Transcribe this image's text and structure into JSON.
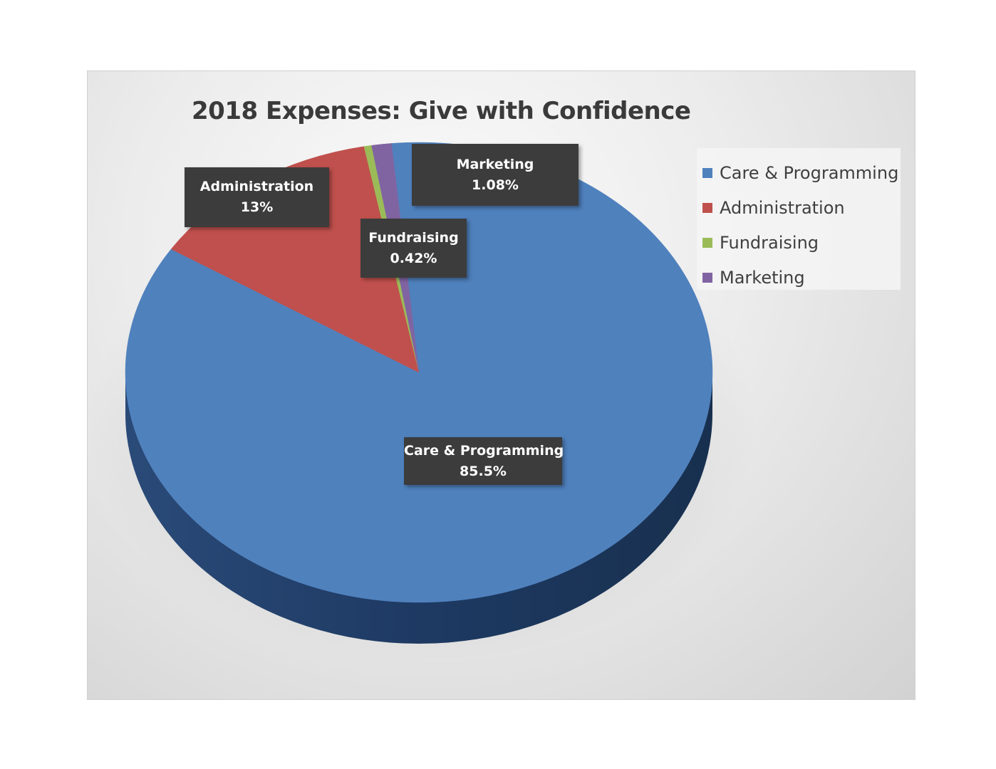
{
  "chart_data": {
    "type": "pie",
    "title": "2018 Expenses: Give with Confidence",
    "slices": [
      {
        "label": "Care & Programming",
        "value": 85.5,
        "value_text": "85.5%",
        "color": "#4f81bd"
      },
      {
        "label": "Administration",
        "value": 13,
        "value_text": "13%",
        "color": "#c0504d"
      },
      {
        "label": "Fundraising",
        "value": 0.42,
        "value_text": "0.42%",
        "color": "#9bbb59"
      },
      {
        "label": "Marketing",
        "value": 1.08,
        "value_text": "1.08%",
        "color": "#8064a2"
      }
    ],
    "legend_position": "right",
    "style": "3d"
  }
}
